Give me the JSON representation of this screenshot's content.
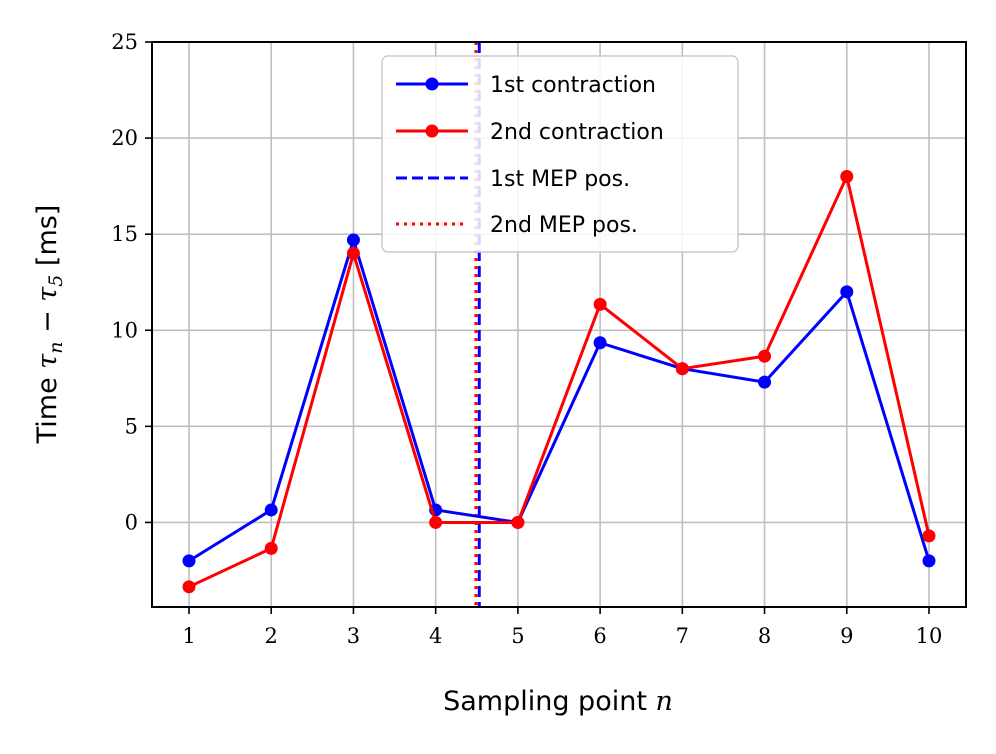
{
  "chart_data": {
    "type": "line",
    "title": "",
    "xlabel": "Sampling point",
    "xlabel_var": "n",
    "ylabel": "Time",
    "ylabel_math": "τ",
    "ylabel_sub_n": "n",
    "ylabel_minus": " − ",
    "ylabel_sub_5": "5",
    "ylabel_unit": " [ms]",
    "x": [
      1,
      2,
      3,
      4,
      5,
      6,
      7,
      8,
      9,
      10
    ],
    "xticks": [
      "1",
      "2",
      "3",
      "4",
      "5",
      "6",
      "7",
      "8",
      "9",
      "10"
    ],
    "yticks": [
      "0",
      "5",
      "10",
      "15",
      "20",
      "25"
    ],
    "yticks_values": [
      0,
      5,
      10,
      15,
      20,
      25
    ],
    "xlim": [
      0.55,
      10.45
    ],
    "ylim": [
      -4.4,
      25
    ],
    "grid": true,
    "legend_position": "top-center",
    "series": [
      {
        "name": "1st contraction",
        "color": "#0000ff",
        "style": "solid-marker",
        "values": [
          -2.0,
          0.65,
          14.7,
          0.65,
          0.0,
          9.35,
          8.0,
          7.3,
          12.0,
          -2.0
        ]
      },
      {
        "name": "2nd contraction",
        "color": "#ff0000",
        "style": "solid-marker",
        "values": [
          -3.35,
          -1.35,
          14.0,
          0.0,
          0.0,
          11.35,
          8.0,
          8.65,
          18.0,
          -0.7
        ]
      }
    ],
    "vlines": [
      {
        "name": "1st MEP pos.",
        "color": "#0000ff",
        "style": "dashed",
        "x": 4.53
      },
      {
        "name": "2nd MEP pos.",
        "color": "#ff0000",
        "style": "dotted",
        "x": 4.49
      }
    ]
  }
}
